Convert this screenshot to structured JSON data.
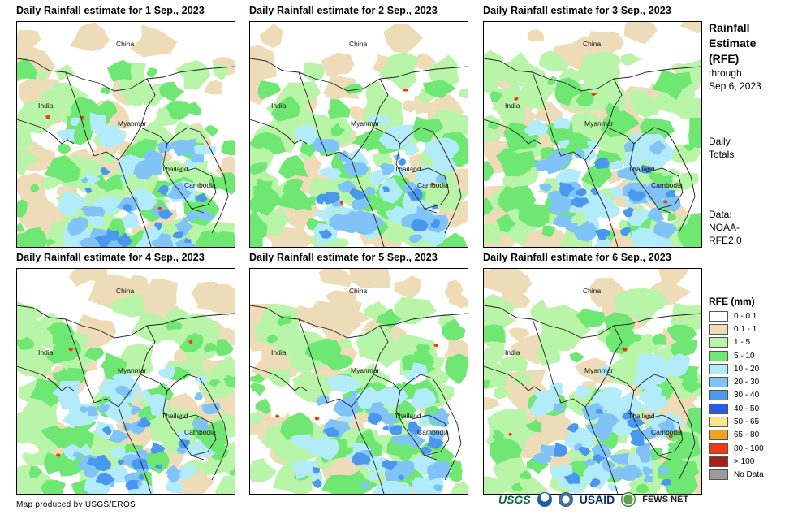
{
  "panels": [
    {
      "title": "Daily Rainfall estimate for 1 Sep., 2023",
      "seed": 11
    },
    {
      "title": "Daily Rainfall estimate for 2 Sep., 2023",
      "seed": 23
    },
    {
      "title": "Daily Rainfall estimate for 3 Sep., 2023",
      "seed": 37
    },
    {
      "title": "Daily Rainfall estimate for 4 Sep., 2023",
      "seed": 41
    },
    {
      "title": "Daily Rainfall estimate for 5 Sep., 2023",
      "seed": 53
    },
    {
      "title": "Daily Rainfall estimate for 6 Sep., 2023",
      "seed": 67
    }
  ],
  "map_labels": {
    "china": "China",
    "india": "India",
    "myanmar": "Myanmar",
    "thailand": "Thailand",
    "cambodia": "Cambodia"
  },
  "side": {
    "title_line1": "Rainfall",
    "title_line2": "Estimate",
    "title_line3": "(RFE)",
    "through_line1": "through",
    "through_line2": "Sep 6, 2023",
    "daily_line1": "Daily",
    "daily_line2": "Totals",
    "data_line1": "Data:",
    "data_line2": "NOAA-",
    "data_line3": "RFE2.0"
  },
  "legend": {
    "title": "RFE (mm)",
    "items": [
      {
        "label": "0 - 0.1",
        "color": "#ffffff"
      },
      {
        "label": "0.1 - 1",
        "color": "#eedcb8"
      },
      {
        "label": "1 - 5",
        "color": "#b8f5a8"
      },
      {
        "label": "5 - 10",
        "color": "#6ee873"
      },
      {
        "label": "10 - 20",
        "color": "#b2ecfa"
      },
      {
        "label": "20 - 30",
        "color": "#80c3f7"
      },
      {
        "label": "30 - 40",
        "color": "#4a97ee"
      },
      {
        "label": "40 - 50",
        "color": "#2a5be6"
      },
      {
        "label": "50 - 65",
        "color": "#f8e68c"
      },
      {
        "label": "65 - 80",
        "color": "#f3a122"
      },
      {
        "label": "80 - 100",
        "color": "#f23a0c"
      },
      {
        "label": "> 100",
        "color": "#a5201c"
      },
      {
        "label": "No Data",
        "color": "#9a9a9a"
      }
    ]
  },
  "footer": {
    "credit": "Map produced by USGS/EROS"
  },
  "logos": {
    "usgs": "USGS",
    "usaid": "USAID",
    "fews": "FEWS NET"
  }
}
